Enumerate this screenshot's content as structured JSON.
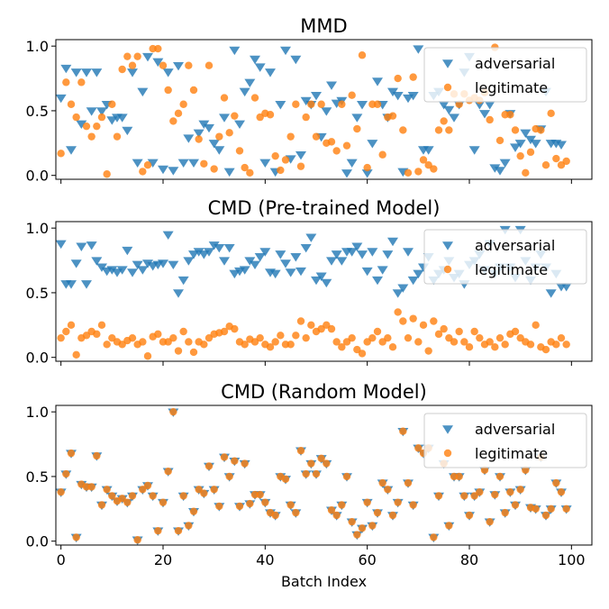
{
  "chart_data": [
    {
      "type": "scatter",
      "title": "MMD",
      "xlabel": "",
      "ylabel": "",
      "xlim": [
        -1,
        104
      ],
      "ylim": [
        -0.03,
        1.05
      ],
      "xticks": [
        0,
        20,
        40,
        60,
        80,
        100
      ],
      "yticks": [
        "0.0",
        "0.5",
        "1.0"
      ],
      "show_xtick_labels": false,
      "legend": "upper right",
      "series": [
        {
          "name": "adversarial",
          "marker": "triangle-down",
          "color": "#1f77b4",
          "values": [
            0.6,
            0.83,
            0.2,
            0.8,
            0.4,
            0.8,
            0.5,
            0.8,
            0.5,
            0.55,
            0.43,
            0.45,
            0.45,
            0.35,
            0.8,
            0.1,
            0.65,
            0.92,
            0.1,
            0.88,
            0.05,
            0.8,
            0.04,
            0.85,
            0.1,
            0.29,
            0.1,
            0.33,
            0.4,
            0.37,
            0.25,
            0.2,
            0.45,
            0.03,
            0.97,
            0.4,
            0.65,
            0.72,
            0.9,
            0.84,
            0.1,
            0.8,
            0.03,
            0.55,
            0.97,
            0.13,
            0.9,
            0.16,
            0.58,
            0.55,
            0.62,
            0.3,
            0.5,
            0.7,
            0.56,
            0.58,
            0.02,
            0.1,
            0.45,
            0.55,
            0.02,
            0.25,
            0.73,
            0.55,
            0.45,
            0.65,
            0.62,
            0.03,
            0.6,
            0.62,
            0.98,
            0.2,
            0.2,
            0.62,
            0.65,
            0.55,
            0.51,
            0.45,
            0.55,
            0.8,
            0.92,
            0.2,
            0.55,
            0.48,
            0.55,
            0.06,
            0.04,
            0.1,
            0.48,
            0.22,
            0.25,
            0.33,
            0.28,
            0.25,
            0.36,
            0.65,
            0.25,
            0.25,
            0.24
          ]
        },
        {
          "name": "legitimate",
          "marker": "circle",
          "color": "#ff7f0e",
          "values": [
            0.17,
            0.72,
            0.55,
            0.45,
            0.72,
            0.38,
            0.3,
            0.38,
            0.45,
            0.01,
            0.55,
            0.3,
            0.82,
            0.92,
            0.85,
            0.92,
            0.03,
            0.08,
            0.98,
            0.98,
            0.85,
            0.66,
            0.42,
            0.48,
            0.55,
            0.85,
            0.66,
            0.28,
            0.09,
            0.85,
            0.05,
            0.3,
            0.6,
            0.33,
            0.46,
            0.19,
            0.06,
            0.02,
            0.6,
            0.45,
            0.48,
            0.47,
            0.15,
            0.04,
            0.12,
            0.3,
            0.55,
            0.07,
            0.45,
            0.55,
            0.3,
            0.55,
            0.25,
            0.26,
            0.19,
            0.55,
            0.23,
            0.62,
            0.36,
            0.93,
            0.06,
            0.55,
            0.55,
            0.16,
            0.45,
            0.46,
            0.75,
            0.35,
            0.02,
            0.76,
            0.03,
            0.12,
            0.08,
            0.05,
            0.35,
            0.42,
            0.35,
            0.63,
            0.55,
            0.63,
            0.58,
            0.6,
            0.58,
            0.64,
            0.43,
            0.99,
            0.27,
            0.47,
            0.47,
            0.35,
            0.15,
            0.02,
            0.18,
            0.36,
            0.35,
            0.08,
            0.48,
            0.13,
            0.08,
            0.11
          ]
        }
      ]
    },
    {
      "type": "scatter",
      "title": "CMD (Pre-trained Model)",
      "xlabel": "",
      "ylabel": "",
      "xlim": [
        -1,
        104
      ],
      "ylim": [
        -0.03,
        1.05
      ],
      "xticks": [
        0,
        20,
        40,
        60,
        80,
        100
      ],
      "yticks": [
        "0.0",
        "0.5",
        "1.0"
      ],
      "show_xtick_labels": false,
      "legend": "upper right",
      "series": [
        {
          "name": "adversarial",
          "marker": "triangle-down",
          "color": "#1f77b4",
          "values": [
            0.88,
            0.57,
            0.57,
            0.73,
            0.86,
            0.57,
            0.87,
            0.75,
            0.7,
            0.67,
            0.68,
            0.66,
            0.68,
            0.83,
            0.66,
            0.72,
            0.68,
            0.73,
            0.71,
            0.72,
            0.73,
            0.95,
            0.72,
            0.5,
            0.6,
            0.75,
            0.8,
            0.82,
            0.8,
            0.82,
            0.87,
            0.85,
            0.75,
            0.85,
            0.65,
            0.67,
            0.68,
            0.75,
            0.72,
            0.78,
            0.82,
            0.66,
            0.65,
            0.8,
            0.73,
            0.66,
            0.78,
            0.67,
            0.85,
            0.93,
            0.6,
            0.63,
            0.58,
            0.75,
            0.8,
            0.75,
            0.82,
            0.82,
            0.86,
            0.8,
            0.67,
            0.82,
            0.6,
            0.68,
            0.8,
            0.9,
            0.5,
            0.54,
            0.82,
            0.6,
            0.65,
            0.7,
            0.78,
            0.6,
            0.65,
            0.68,
            0.75,
            0.62,
            0.65,
            0.57,
            0.72,
            0.75,
            0.8,
            0.68,
            0.88,
            0.65,
            0.7,
            0.99,
            0.7,
            0.62,
            0.99,
            0.75,
            0.6,
            0.7,
            0.8,
            0.7,
            0.5,
            0.65,
            0.55,
            0.55
          ]
        },
        {
          "name": "legitimate",
          "marker": "circle",
          "color": "#ff7f0e",
          "values": [
            0.15,
            0.2,
            0.25,
            0.02,
            0.15,
            0.17,
            0.2,
            0.18,
            0.25,
            0.1,
            0.15,
            0.12,
            0.1,
            0.13,
            0.15,
            0.1,
            0.12,
            0.01,
            0.16,
            0.18,
            0.12,
            0.12,
            0.15,
            0.05,
            0.2,
            0.12,
            0.04,
            0.12,
            0.1,
            0.15,
            0.18,
            0.19,
            0.2,
            0.24,
            0.22,
            0.12,
            0.1,
            0.14,
            0.12,
            0.15,
            0.1,
            0.08,
            0.12,
            0.17,
            0.1,
            0.1,
            0.17,
            0.28,
            0.15,
            0.25,
            0.2,
            0.22,
            0.25,
            0.22,
            0.12,
            0.08,
            0.12,
            0.15,
            0.06,
            0.03,
            0.12,
            0.15,
            0.2,
            0.12,
            0.15,
            0.08,
            0.35,
            0.28,
            0.15,
            0.3,
            0.12,
            0.25,
            0.05,
            0.28,
            0.18,
            0.22,
            0.15,
            0.12,
            0.2,
            0.12,
            0.08,
            0.2,
            0.15,
            0.1,
            0.12,
            0.08,
            0.15,
            0.1,
            0.18,
            0.2,
            0.15,
            0.12,
            0.1,
            0.25,
            0.08,
            0.06,
            0.12,
            0.1,
            0.15,
            0.1
          ]
        }
      ]
    },
    {
      "type": "scatter",
      "title": "CMD (Random Model)",
      "xlabel": "Batch Index",
      "ylabel": "",
      "xlim": [
        -1,
        104
      ],
      "ylim": [
        -0.03,
        1.05
      ],
      "xticks": [
        0,
        20,
        40,
        60,
        80,
        100
      ],
      "yticks": [
        "0.0",
        "0.5",
        "1.0"
      ],
      "show_xtick_labels": true,
      "legend": "upper right",
      "series": [
        {
          "name": "adversarial",
          "marker": "triangle-down",
          "color": "#1f77b4",
          "values": [
            0.38,
            0.52,
            0.68,
            0.03,
            0.44,
            0.42,
            0.42,
            0.66,
            0.28,
            0.4,
            0.35,
            0.31,
            0.33,
            0.3,
            0.35,
            0.01,
            0.4,
            0.43,
            0.35,
            0.08,
            0.3,
            0.54,
            1.0,
            0.08,
            0.35,
            0.12,
            0.23,
            0.4,
            0.37,
            0.58,
            0.4,
            0.27,
            0.65,
            0.5,
            0.62,
            0.27,
            0.6,
            0.29,
            0.36,
            0.36,
            0.3,
            0.22,
            0.2,
            0.5,
            0.48,
            0.28,
            0.22,
            0.7,
            0.52,
            0.6,
            0.52,
            0.64,
            0.6,
            0.24,
            0.2,
            0.28,
            0.5,
            0.15,
            0.05,
            0.1,
            0.3,
            0.12,
            0.22,
            0.45,
            0.4,
            0.2,
            0.3,
            0.85,
            0.45,
            0.28,
            0.72,
            0.68,
            0.72,
            0.03,
            0.35,
            0.6,
            0.12,
            0.5,
            0.5,
            0.35,
            0.2,
            0.35,
            0.38,
            0.55,
            0.15,
            0.36,
            0.5,
            0.22,
            0.38,
            0.28,
            0.4,
            0.55,
            0.26,
            0.25,
            0.65,
            0.2,
            0.25,
            0.45,
            0.38,
            0.25
          ]
        },
        {
          "name": "legitimate",
          "marker": "circle",
          "color": "#ff7f0e",
          "values": [
            0.38,
            0.52,
            0.68,
            0.03,
            0.44,
            0.42,
            0.42,
            0.66,
            0.28,
            0.4,
            0.35,
            0.31,
            0.33,
            0.3,
            0.35,
            0.01,
            0.4,
            0.43,
            0.35,
            0.08,
            0.3,
            0.54,
            1.0,
            0.08,
            0.35,
            0.12,
            0.23,
            0.4,
            0.37,
            0.58,
            0.4,
            0.27,
            0.65,
            0.5,
            0.62,
            0.27,
            0.6,
            0.29,
            0.36,
            0.36,
            0.3,
            0.22,
            0.2,
            0.5,
            0.48,
            0.28,
            0.22,
            0.7,
            0.52,
            0.6,
            0.52,
            0.64,
            0.6,
            0.24,
            0.2,
            0.28,
            0.5,
            0.15,
            0.05,
            0.1,
            0.3,
            0.12,
            0.22,
            0.45,
            0.4,
            0.2,
            0.3,
            0.85,
            0.45,
            0.28,
            0.72,
            0.68,
            0.72,
            0.03,
            0.35,
            0.6,
            0.12,
            0.5,
            0.5,
            0.35,
            0.2,
            0.35,
            0.38,
            0.55,
            0.15,
            0.36,
            0.5,
            0.22,
            0.38,
            0.28,
            0.4,
            0.55,
            0.26,
            0.25,
            0.65,
            0.2,
            0.25,
            0.45,
            0.38,
            0.25
          ]
        }
      ]
    }
  ]
}
